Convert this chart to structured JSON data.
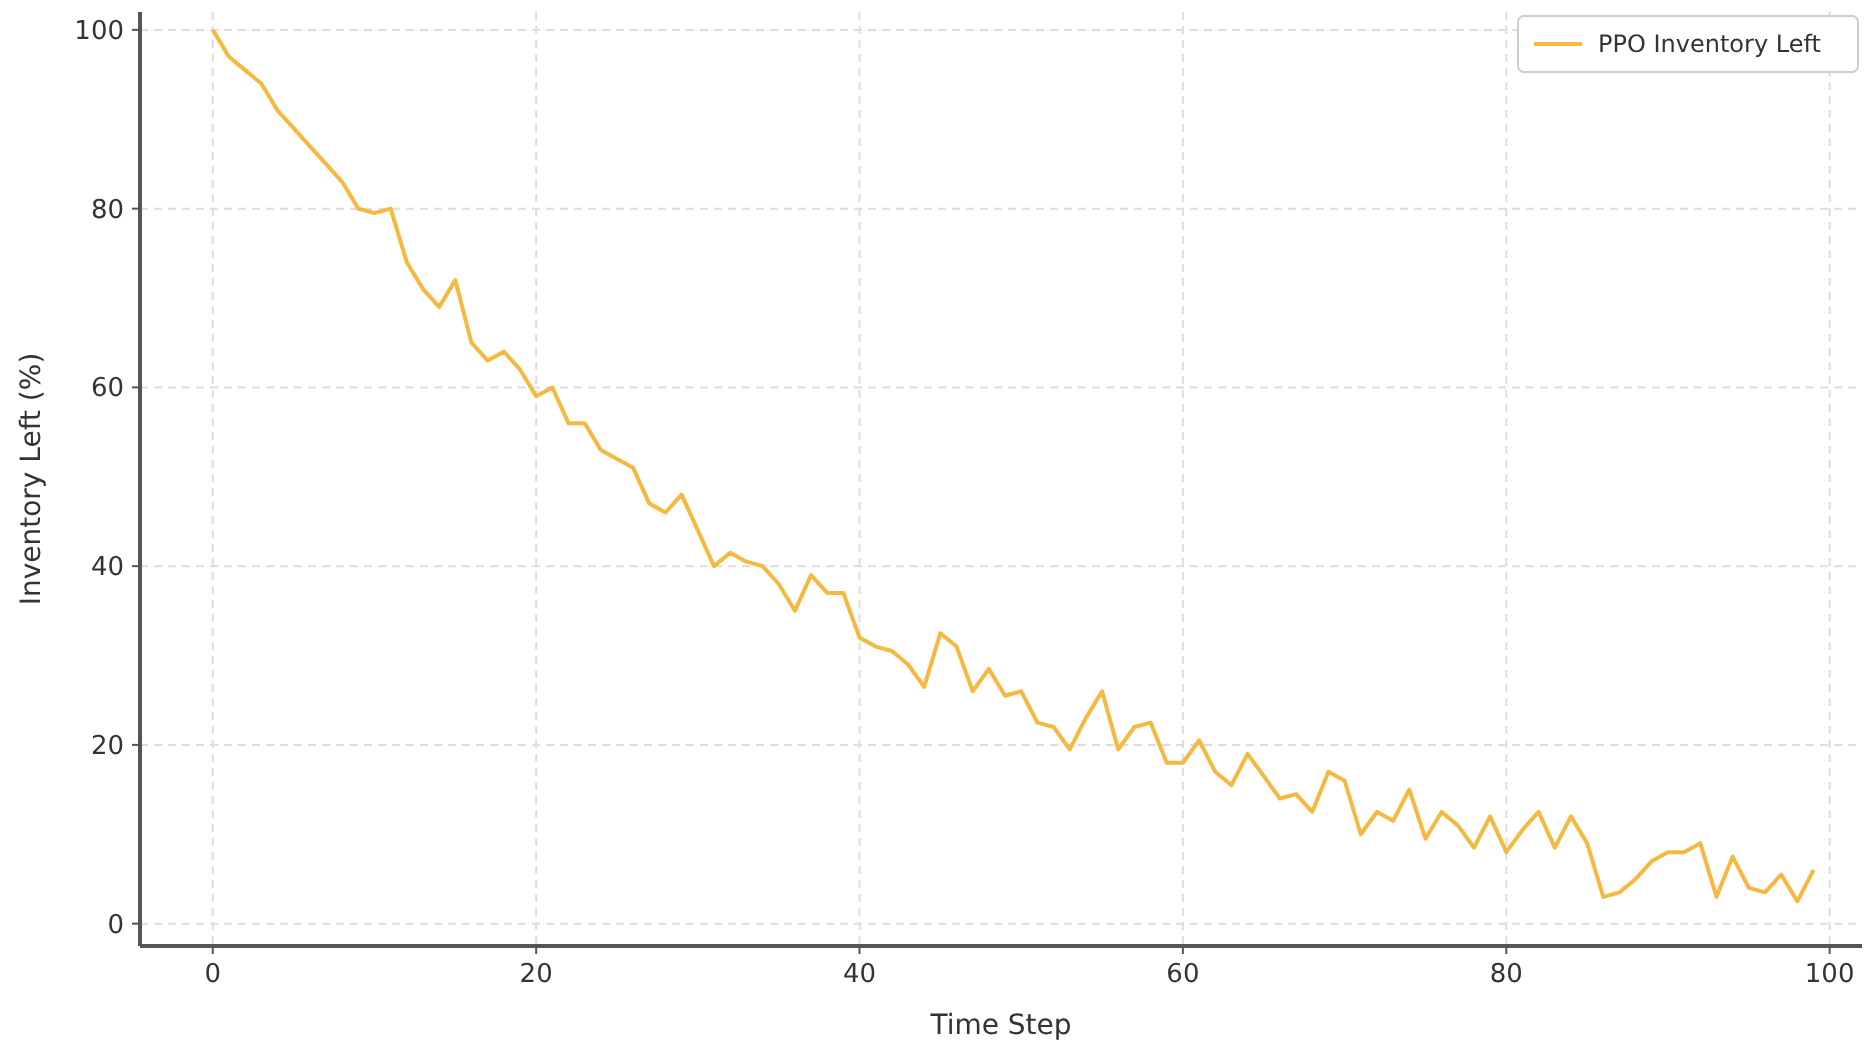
{
  "chart_data": {
    "type": "line",
    "xlabel": "Time Step",
    "ylabel": "Inventory Left (%)",
    "x": [
      0,
      1,
      2,
      3,
      4,
      5,
      6,
      7,
      8,
      9,
      10,
      11,
      12,
      13,
      14,
      15,
      16,
      17,
      18,
      19,
      20,
      21,
      22,
      23,
      24,
      25,
      26,
      27,
      28,
      29,
      30,
      31,
      32,
      33,
      34,
      35,
      36,
      37,
      38,
      39,
      40,
      41,
      42,
      43,
      44,
      45,
      46,
      47,
      48,
      49,
      50,
      51,
      52,
      53,
      54,
      55,
      56,
      57,
      58,
      59,
      60,
      61,
      62,
      63,
      64,
      65,
      66,
      67,
      68,
      69,
      70,
      71,
      72,
      73,
      74,
      75,
      76,
      77,
      78,
      79,
      80,
      81,
      82,
      83,
      84,
      85,
      86,
      87,
      88,
      89,
      90,
      91,
      92,
      93,
      94,
      95,
      96,
      97,
      98,
      99
    ],
    "series": [
      {
        "name": "PPO Inventory Left",
        "color": "#f5b942",
        "values": [
          100,
          97,
          95.5,
          94,
          91,
          89,
          87,
          85,
          83,
          80,
          79.5,
          80,
          74,
          71,
          69,
          72,
          65,
          63,
          64,
          62,
          59,
          60,
          56,
          56,
          53,
          52,
          51,
          47,
          46,
          48,
          44,
          40,
          41.5,
          40.5,
          40,
          38,
          35,
          39,
          37,
          37,
          32,
          31,
          30.5,
          29,
          26.5,
          32.5,
          31,
          26,
          28.5,
          25.5,
          26,
          22.5,
          22,
          19.5,
          23,
          26,
          19.5,
          22,
          22.5,
          18,
          18,
          20.5,
          17,
          15.5,
          19,
          16.5,
          14,
          14.5,
          12.5,
          17,
          16,
          10,
          12.5,
          11.5,
          15,
          9.5,
          12.5,
          11,
          8.5,
          12,
          8,
          10.5,
          12.5,
          8.5,
          12,
          9,
          3,
          3.5,
          5,
          7,
          8,
          8,
          9,
          3,
          7.5,
          4,
          3.5,
          5.5,
          2.5,
          6
        ]
      }
    ],
    "xlim": [
      -4.5,
      102
    ],
    "ylim": [
      -2.5,
      102
    ],
    "xticks": [
      0,
      20,
      40,
      60,
      80,
      100
    ],
    "yticks": [
      0,
      20,
      40,
      60,
      80,
      100
    ],
    "grid": true,
    "legend": "top right",
    "marker": "none",
    "line_style": "solid"
  }
}
